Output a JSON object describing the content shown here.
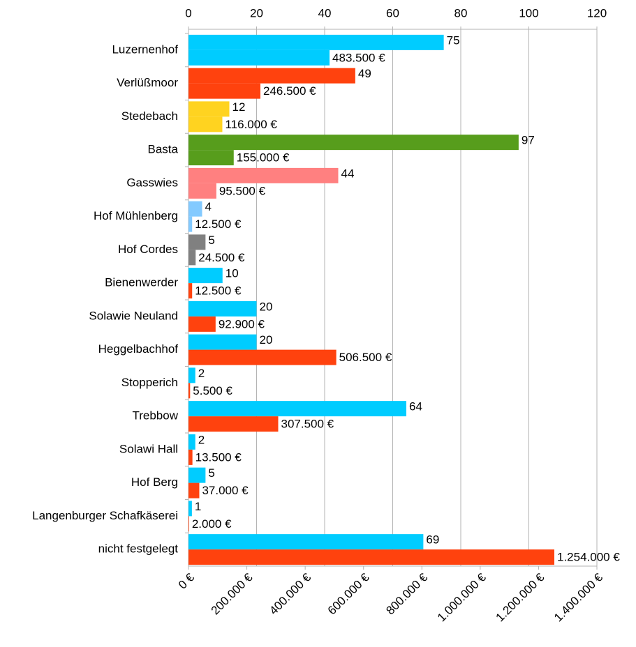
{
  "chart_data": {
    "type": "barh",
    "categories": [
      "Luzernenhof",
      "Verlüßmoor",
      "Stedebach",
      "Basta",
      "Gasswies",
      "Hof Mühlenberg",
      "Hof Cordes",
      "Bienenwerder",
      "Solawie Neuland",
      "Heggelbachhof",
      "Stopperich",
      "Trebbow",
      "Solawi Hall",
      "Hof Berg",
      "Langenburger Schafkäserei",
      "nicht festgelegt"
    ],
    "series": [
      {
        "axis": "x2",
        "values": [
          75,
          49,
          12,
          97,
          44,
          4,
          5,
          10,
          20,
          20,
          2,
          64,
          2,
          5,
          1,
          69
        ],
        "colors": [
          "#00ccff",
          "#ff420e",
          "#ffd320",
          "#579d1c",
          "#ff8080",
          "#83caff",
          "#808080",
          "#00ccff",
          "#00ccff",
          "#00ccff",
          "#00ccff",
          "#00ccff",
          "#00ccff",
          "#00ccff",
          "#00ccff",
          "#00ccff"
        ]
      },
      {
        "axis": "x",
        "values": [
          483500,
          246500,
          116000,
          155000,
          95500,
          12500,
          24500,
          12500,
          92900,
          506500,
          5500,
          307500,
          13500,
          37000,
          2000,
          1254000
        ],
        "value_labels": [
          "483.500 €",
          "246.500 €",
          "116.000 €",
          "155.000 €",
          "95.500 €",
          "12.500 €",
          "24.500 €",
          "12.500 €",
          "92.900 €",
          "506.500 €",
          "5.500 €",
          "307.500 €",
          "13.500 €",
          "37.000 €",
          "2.000 €",
          "1.254.000 €"
        ],
        "colors": [
          "#00ccff",
          "#ff420e",
          "#ffd320",
          "#579d1c",
          "#ff8080",
          "#83caff",
          "#808080",
          "#ff420e",
          "#ff420e",
          "#ff420e",
          "#ff420e",
          "#ff420e",
          "#ff420e",
          "#ff420e",
          "#ff420e",
          "#ff420e"
        ]
      }
    ],
    "x2lim": [
      0,
      120
    ],
    "x2ticks": [
      0,
      20,
      40,
      60,
      80,
      100,
      120
    ],
    "xlim": [
      0,
      1400000
    ],
    "xticks": [
      {
        "value": 0,
        "label": "0 €"
      },
      {
        "value": 200000,
        "label": "200.000 €"
      },
      {
        "value": 400000,
        "label": "400.000 €"
      },
      {
        "value": 600000,
        "label": "600.000 €"
      },
      {
        "value": 800000,
        "label": "800.000 €"
      },
      {
        "value": 1000000,
        "label": "1.000.000 €"
      },
      {
        "value": 1200000,
        "label": "1.200.000 €"
      },
      {
        "value": 1400000,
        "label": "1.400.000 €"
      }
    ],
    "grid": true
  }
}
